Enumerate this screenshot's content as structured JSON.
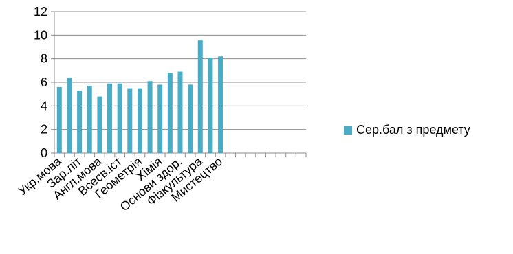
{
  "chart_data": {
    "type": "bar",
    "title": "",
    "xlabel": "",
    "ylabel": "",
    "ylim": [
      0,
      12
    ],
    "yticks": [
      0,
      2,
      4,
      6,
      8,
      10,
      12
    ],
    "grid": true,
    "legend_position": "right",
    "categories": [
      "Укр.мова",
      "",
      "Зар.літ",
      "",
      "Англ.мова",
      "",
      "Всесв.іст",
      "",
      "Геометрія",
      "",
      "Хімія",
      "",
      "Основи здор.",
      "",
      "Фізкультура",
      "",
      "Мистецтво",
      "",
      "",
      "",
      "",
      "",
      "",
      "",
      ""
    ],
    "series": [
      {
        "name": "Сер.бал з предмету",
        "color": "#4BACC6",
        "values": [
          5.6,
          6.4,
          5.3,
          5.7,
          4.8,
          5.9,
          5.9,
          5.5,
          5.5,
          6.1,
          5.8,
          6.8,
          6.9,
          5.8,
          9.6,
          8.1,
          8.2,
          null,
          null,
          null,
          null,
          null,
          null,
          null,
          null
        ]
      }
    ]
  }
}
